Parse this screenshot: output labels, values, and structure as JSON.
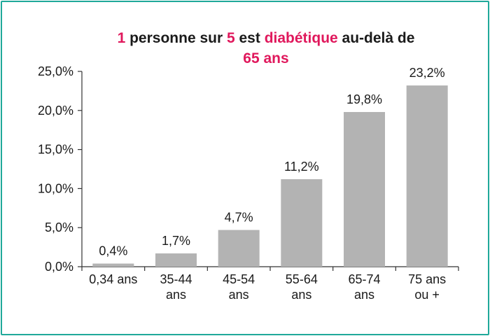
{
  "title": {
    "part1": "1",
    "part2": " personne sur ",
    "part3": "5",
    "part4": " est ",
    "part5": "diabétique",
    "part6": " au-delà de",
    "part7": "65 ans"
  },
  "chart_data": {
    "type": "bar",
    "title": "1 personne sur 5 est diabétique au-delà de 65 ans",
    "categories": [
      [
        "0,34 ans"
      ],
      [
        "35-44",
        "ans"
      ],
      [
        "45-54",
        "ans"
      ],
      [
        "55-64",
        "ans"
      ],
      [
        "65-74",
        "ans"
      ],
      [
        "75 ans",
        "ou +"
      ]
    ],
    "values": [
      0.4,
      1.7,
      4.7,
      11.2,
      19.8,
      23.2
    ],
    "value_labels": [
      "0,4%",
      "1,7%",
      "4,7%",
      "11,2%",
      "19,8%",
      "23,2%"
    ],
    "yticks": [
      0,
      5,
      10,
      15,
      20,
      25
    ],
    "ytick_labels": [
      "0,0%",
      "5,0%",
      "10,0%",
      "15,0%",
      "20,0%",
      "25,0%"
    ],
    "ylim": [
      0,
      25
    ],
    "grid": false,
    "bar_color": "#b3b3b3"
  },
  "colors": {
    "frame": "#1fa99a",
    "highlight": "#e0185c"
  }
}
